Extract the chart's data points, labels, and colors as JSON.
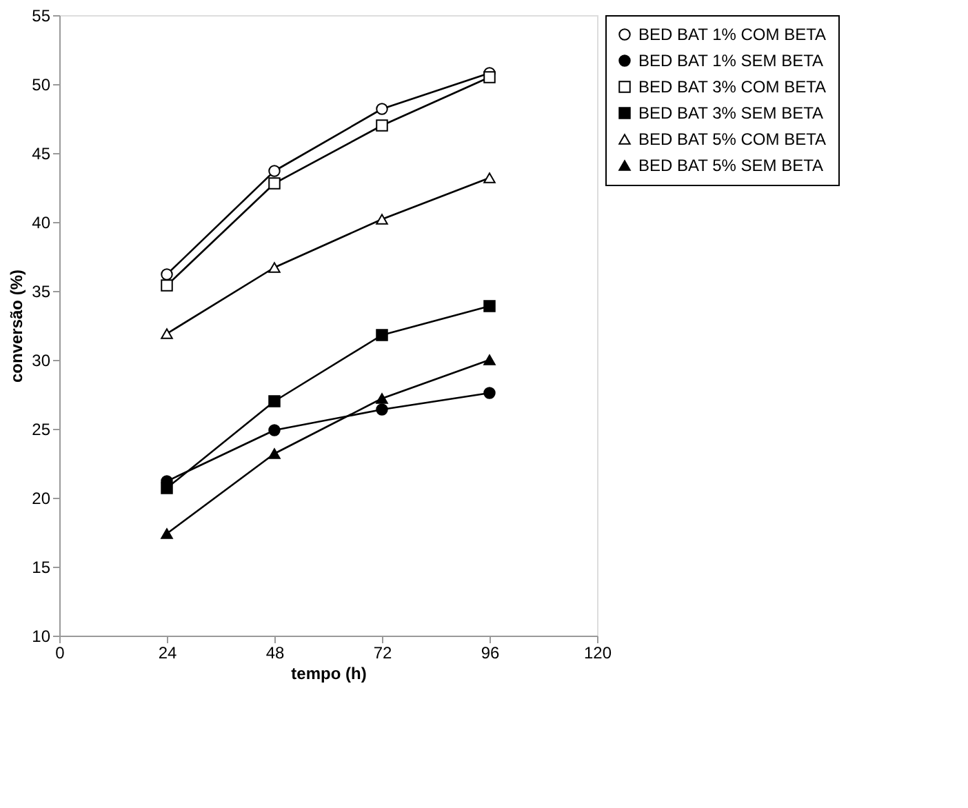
{
  "chart_data": {
    "type": "line",
    "xlabel": "tempo (h)",
    "ylabel": "conversão (%)",
    "x": [
      24,
      48,
      72,
      96
    ],
    "xlim": [
      0,
      120
    ],
    "xticks": [
      0,
      24,
      48,
      72,
      96,
      120
    ],
    "ylim": [
      10,
      55
    ],
    "yticks": [
      10,
      15,
      20,
      25,
      30,
      35,
      40,
      45,
      50,
      55
    ],
    "grid": false,
    "legend": "right",
    "line_style": "solid",
    "series": [
      {
        "name": "BED BAT 1% COM BETA",
        "color": "#ffffff",
        "marker": "circle",
        "values": [
          36.2,
          43.7,
          48.2,
          50.8
        ]
      },
      {
        "name": "BED BAT 1% SEM BETA",
        "color": "#000000",
        "marker": "circle",
        "values": [
          21.2,
          24.9,
          26.4,
          27.6
        ]
      },
      {
        "name": "BED BAT 3% COM BETA",
        "color": "#ffffff",
        "marker": "square",
        "values": [
          35.4,
          42.8,
          47.0,
          50.5
        ]
      },
      {
        "name": "BED BAT 3% SEM BETA",
        "color": "#000000",
        "marker": "square",
        "values": [
          20.7,
          27.0,
          31.8,
          33.9
        ]
      },
      {
        "name": "BED BAT 5% COM BETA",
        "color": "#ffffff",
        "marker": "triangle",
        "values": [
          31.9,
          36.7,
          40.2,
          43.2
        ]
      },
      {
        "name": "BED BAT 5% SEM BETA",
        "color": "#000000",
        "marker": "triangle",
        "values": [
          17.4,
          23.2,
          27.2,
          30.0
        ]
      }
    ]
  }
}
